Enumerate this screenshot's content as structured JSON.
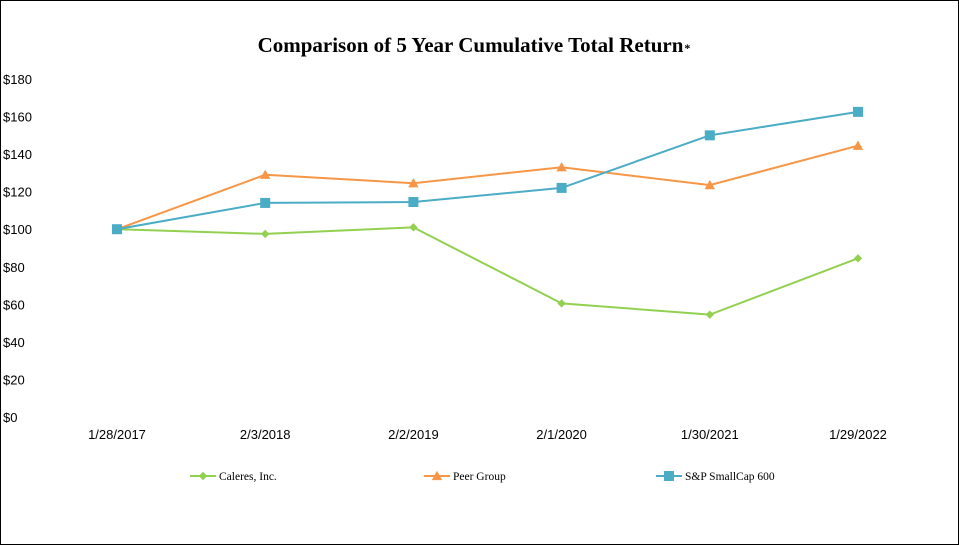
{
  "chart_data": {
    "type": "line",
    "title": "Comparison of 5 Year Cumulative Total Return",
    "title_mark": "*",
    "categories": [
      "1/28/2017",
      "2/3/2018",
      "2/2/2019",
      "2/1/2020",
      "1/30/2021",
      "1/29/2022"
    ],
    "ylim": [
      0,
      180
    ],
    "yticks": [
      0,
      20,
      40,
      60,
      80,
      100,
      120,
      140,
      160,
      180
    ],
    "ytick_labels": [
      "$0",
      "$20",
      "$40",
      "$60",
      "$80",
      "$100",
      "$120",
      "$140",
      "$160",
      "$180"
    ],
    "grid": false,
    "legend_position": "bottom",
    "series": [
      {
        "name": "Caleres, Inc.",
        "color": "#92d050",
        "marker": "diamond",
        "values": [
          100,
          97.5,
          101,
          60.5,
          54.5,
          84.5
        ]
      },
      {
        "name": "Peer Group",
        "color": "#f79646",
        "marker": "triangle",
        "values": [
          100,
          129,
          124.5,
          133,
          123.5,
          144.5
        ]
      },
      {
        "name": "S&P SmallCap 600",
        "color": "#4bacc6",
        "marker": "square",
        "values": [
          100,
          114,
          114.5,
          122,
          150,
          162.5
        ]
      }
    ]
  }
}
